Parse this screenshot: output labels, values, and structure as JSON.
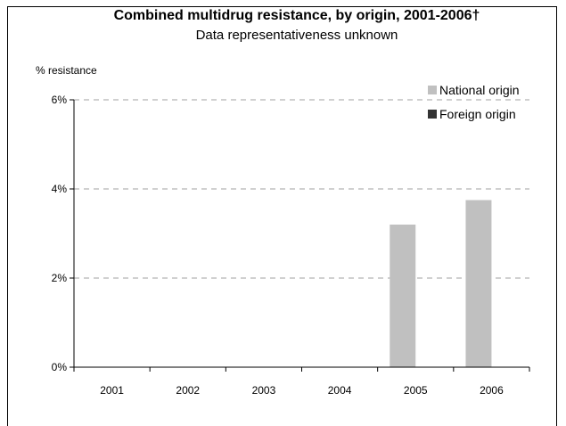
{
  "chart_data": {
    "type": "bar",
    "title": "Combined multidrug resistance, by origin, 2001-2006†",
    "subtitle": "Data representativeness unknown",
    "ylabel": "% resistance",
    "xlabel": "",
    "categories": [
      "2001",
      "2002",
      "2003",
      "2004",
      "2005",
      "2006"
    ],
    "series": [
      {
        "name": "National origin",
        "color": "#c0c0c0",
        "values": [
          null,
          null,
          null,
          null,
          3.2,
          3.75
        ]
      },
      {
        "name": "Foreign origin",
        "color": "#333333",
        "values": [
          null,
          null,
          null,
          null,
          null,
          null
        ]
      }
    ],
    "ylim": [
      0,
      6
    ],
    "yticks": [
      0,
      2,
      4,
      6
    ],
    "ytick_labels": [
      "0%",
      "2%",
      "4%",
      "6%"
    ],
    "grid": true,
    "legend_position": "top-right"
  }
}
